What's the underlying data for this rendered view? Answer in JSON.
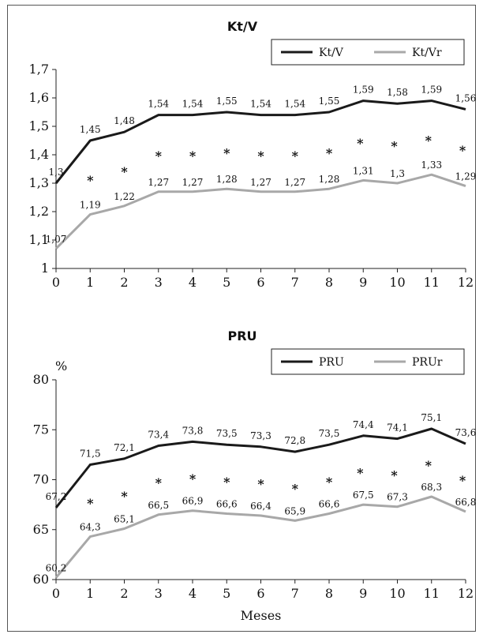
{
  "colors": {
    "series_dark": "#1a1a1a",
    "series_light": "#a8a8a8",
    "axis": "#222222"
  },
  "chart_data": [
    {
      "type": "line",
      "title": "Kt/V",
      "xlabel": "",
      "ylabel": "",
      "x": [
        0,
        1,
        2,
        3,
        4,
        5,
        6,
        7,
        8,
        9,
        10,
        11,
        12
      ],
      "xlim": [
        0,
        12
      ],
      "ylim": [
        1,
        1.7
      ],
      "yticks": [
        "1",
        "1,1",
        "1,2",
        "1,3",
        "1,4",
        "1,5",
        "1,6",
        "1,7"
      ],
      "ytick_values": [
        1,
        1.1,
        1.2,
        1.3,
        1.4,
        1.5,
        1.6,
        1.7
      ],
      "xticks": [
        "0",
        "1",
        "2",
        "3",
        "4",
        "5",
        "6",
        "7",
        "8",
        "9",
        "10",
        "11",
        "12"
      ],
      "legend_position": "top-right",
      "series": [
        {
          "name": "Kt/V",
          "color": "#1a1a1a",
          "values": [
            1.3,
            1.45,
            1.48,
            1.54,
            1.54,
            1.55,
            1.54,
            1.54,
            1.55,
            1.59,
            1.58,
            1.59,
            1.56
          ],
          "labels": [
            "1,3",
            "1,45",
            "1,48",
            "1,54",
            "1,54",
            "1,55",
            "1,54",
            "1,54",
            "1,55",
            "1,59",
            "1,58",
            "1,59",
            "1,56"
          ]
        },
        {
          "name": "Kt/Vr",
          "color": "#a8a8a8",
          "values": [
            1.07,
            1.19,
            1.22,
            1.27,
            1.27,
            1.28,
            1.27,
            1.27,
            1.28,
            1.31,
            1.3,
            1.33,
            1.29
          ],
          "labels": [
            "1,07",
            "1,19",
            "1,22",
            "1,27",
            "1,27",
            "1,28",
            "1,27",
            "1,27",
            "1,28",
            "1,31",
            "1,3",
            "1,33",
            "1,29"
          ]
        }
      ],
      "significance_marks": {
        "symbol": "*",
        "x": [
          1,
          2,
          3,
          4,
          5,
          6,
          7,
          8,
          9,
          10,
          11,
          12
        ]
      }
    },
    {
      "type": "line",
      "title": "PRU",
      "xlabel": "Meses",
      "ylabel": "%",
      "x": [
        0,
        1,
        2,
        3,
        4,
        5,
        6,
        7,
        8,
        9,
        10,
        11,
        12
      ],
      "xlim": [
        0,
        12
      ],
      "ylim": [
        60,
        80
      ],
      "yticks": [
        "60",
        "65",
        "70",
        "75",
        "80"
      ],
      "ytick_values": [
        60,
        65,
        70,
        75,
        80
      ],
      "xticks": [
        "0",
        "1",
        "2",
        "3",
        "4",
        "5",
        "6",
        "7",
        "8",
        "9",
        "10",
        "11",
        "12"
      ],
      "legend_position": "top-right",
      "series": [
        {
          "name": "PRU",
          "color": "#1a1a1a",
          "values": [
            67.2,
            71.5,
            72.1,
            73.4,
            73.8,
            73.5,
            73.3,
            72.8,
            73.5,
            74.4,
            74.1,
            75.1,
            73.6
          ],
          "labels": [
            "67,2",
            "71,5",
            "72,1",
            "73,4",
            "73,8",
            "73,5",
            "73,3",
            "72,8",
            "73,5",
            "74,4",
            "74,1",
            "75,1",
            "73,6"
          ]
        },
        {
          "name": "PRUr",
          "color": "#a8a8a8",
          "values": [
            60.2,
            64.3,
            65.1,
            66.5,
            66.9,
            66.6,
            66.4,
            65.9,
            66.6,
            67.5,
            67.3,
            68.3,
            66.8
          ],
          "labels": [
            "60,2",
            "64,3",
            "65,1",
            "66,5",
            "66,9",
            "66,6",
            "66,4",
            "65,9",
            "66,6",
            "67,5",
            "67,3",
            "68,3",
            "66,8"
          ]
        }
      ],
      "significance_marks": {
        "symbol": "*",
        "x": [
          1,
          2,
          3,
          4,
          5,
          6,
          7,
          8,
          9,
          10,
          11,
          12
        ]
      }
    }
  ]
}
